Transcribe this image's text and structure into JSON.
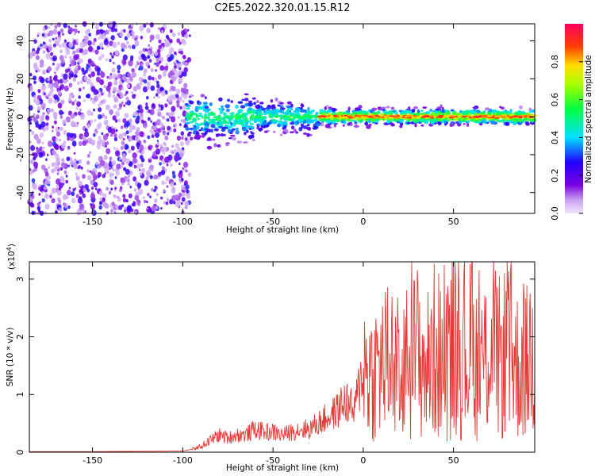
{
  "title": "C2E5.2022.320.01.15.R12",
  "chart_data": [
    {
      "type": "heatmap",
      "xlabel": "Height of straight line (km)",
      "ylabel": "Frequency (Hz)",
      "xlim": [
        -185,
        95
      ],
      "ylim": [
        -51,
        49
      ],
      "xticks": [
        -150,
        -100,
        -50,
        0,
        50
      ],
      "yticks": [
        -40,
        -20,
        0,
        20,
        40
      ],
      "colorbar": {
        "label": "Normalized spectral amplitude",
        "range": [
          0,
          1
        ],
        "ticks": [
          0.0,
          0.2,
          0.4,
          0.6,
          0.8
        ]
      },
      "regions": [
        {
          "x_range": [
            -185,
            -98
          ],
          "description_value": "noise",
          "amplitude_range": [
            0.05,
            0.3
          ]
        },
        {
          "x_range": [
            -98,
            -25
          ],
          "center_freq": 0,
          "amplitude_range": [
            0.2,
            0.55
          ]
        },
        {
          "x_range": [
            -25,
            95
          ],
          "center_freq": 0,
          "amplitude_range": [
            0.45,
            0.95
          ]
        }
      ]
    },
    {
      "type": "line",
      "xlabel": "Height of straight line (km)",
      "ylabel": "SNR (10 * v/v)",
      "yscale_label": "(x10",
      "yscale_exp": "4",
      "yscale_close": ")",
      "xlim": [
        -185,
        95
      ],
      "ylim": [
        0,
        3.3
      ],
      "xticks": [
        -150,
        -100,
        -50,
        0,
        50
      ],
      "yticks": [
        0,
        1,
        2,
        3
      ],
      "color": "#e53935",
      "series": [
        {
          "name": "SNR",
          "x": [
            -185,
            -150,
            -100,
            -95,
            -90,
            -85,
            -80,
            -75,
            -70,
            -65,
            -60,
            -55,
            -50,
            -45,
            -40,
            -35,
            -30,
            -25,
            -20,
            -15,
            -10,
            -5,
            0,
            5,
            10,
            15,
            20,
            25,
            30,
            35,
            40,
            45,
            50,
            55,
            60,
            65,
            70,
            75,
            80,
            85,
            90,
            95
          ],
          "values": [
            0.01,
            0.01,
            0.02,
            0.05,
            0.1,
            0.2,
            0.3,
            0.25,
            0.3,
            0.3,
            0.4,
            0.35,
            0.35,
            0.3,
            0.35,
            0.4,
            0.4,
            0.5,
            0.6,
            0.7,
            0.9,
            0.7,
            1.5,
            1.35,
            1.5,
            1.6,
            1.4,
            1.6,
            1.75,
            1.45,
            1.8,
            1.5,
            1.9,
            1.7,
            1.8,
            1.4,
            1.9,
            1.6,
            1.8,
            1.5,
            1.5,
            1.9
          ]
        }
      ]
    }
  ]
}
